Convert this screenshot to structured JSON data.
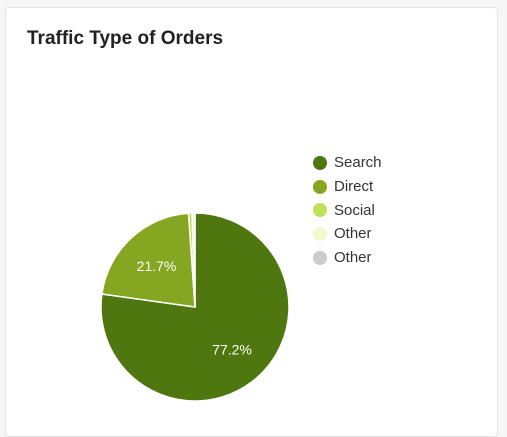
{
  "card": {
    "title": "Traffic Type of Orders"
  },
  "chart_data": {
    "type": "pie",
    "title": "Traffic Type of Orders",
    "slices": [
      {
        "label": "Search",
        "value": 77.2,
        "color": "#4e770f",
        "data_label": "77.2%"
      },
      {
        "label": "Direct",
        "value": 21.7,
        "color": "#84a621",
        "data_label": "21.7%"
      },
      {
        "label": "Social",
        "value": 0.6,
        "color": "#bde05a",
        "data_label": ""
      },
      {
        "label": "Other",
        "value": 0.5,
        "color": "#f3f8cf",
        "data_label": ""
      },
      {
        "label": "Other",
        "value": 0.0,
        "color": "#cccccc",
        "data_label": ""
      }
    ],
    "legend_position": "right",
    "start_angle": "top, clockwise"
  }
}
